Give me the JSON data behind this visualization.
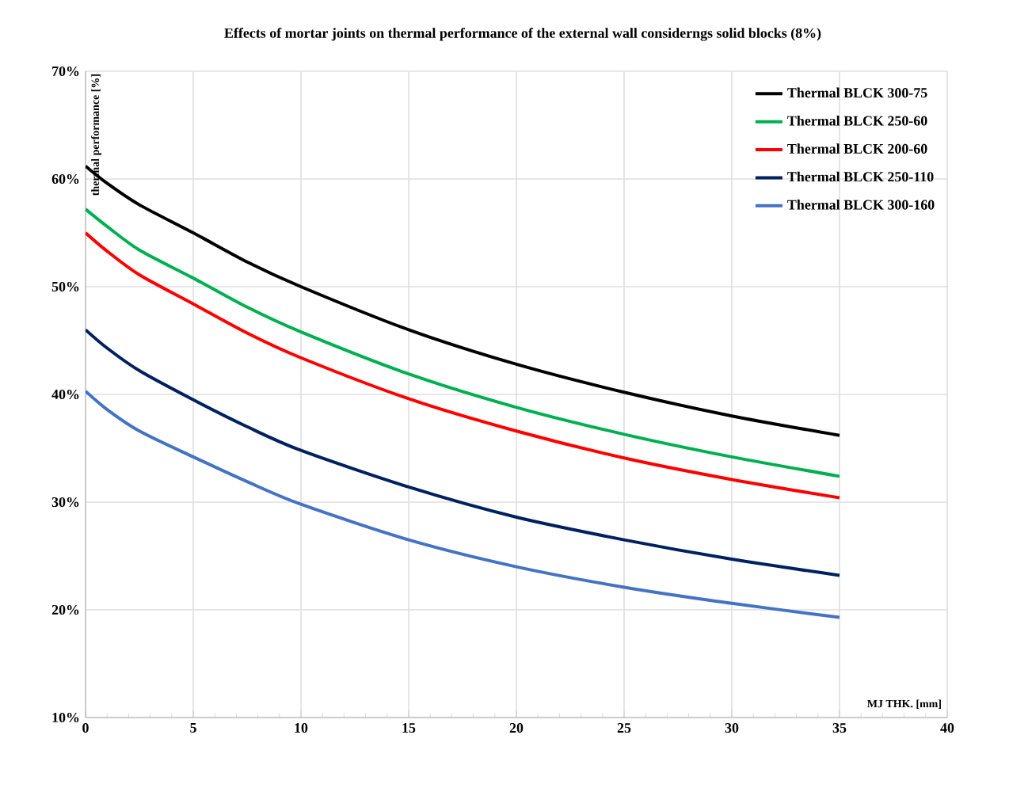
{
  "chart_data": {
    "type": "line",
    "title": "Effects of mortar joints on thermal performance of the external wall considerngs solid blocks (8%)",
    "xlabel": "MJ THK. [mm]",
    "ylabel": "thermal performance [%]",
    "x": [
      0,
      1,
      2.5,
      5,
      7.5,
      10,
      15,
      20,
      25,
      30,
      35
    ],
    "series": [
      {
        "name": "Thermal BLCK 300-75",
        "color": "#000000",
        "values": [
          61.2,
          59.6,
          57.6,
          55.0,
          52.3,
          50.0,
          46.0,
          42.8,
          40.2,
          38.0,
          36.2
        ]
      },
      {
        "name": "Thermal BLCK 250-60",
        "color": "#00b050",
        "values": [
          57.2,
          55.6,
          53.4,
          50.8,
          48.1,
          45.8,
          41.9,
          38.8,
          36.3,
          34.2,
          32.4
        ]
      },
      {
        "name": "Thermal BLCK 200-60",
        "color": "#ff0000",
        "values": [
          55.0,
          53.3,
          51.1,
          48.4,
          45.7,
          43.4,
          39.6,
          36.6,
          34.1,
          32.1,
          30.4
        ]
      },
      {
        "name": "Thermal BLCK 250-110",
        "color": "#002060",
        "values": [
          46.0,
          44.3,
          42.2,
          39.5,
          37.0,
          34.8,
          31.4,
          28.6,
          26.5,
          24.7,
          23.2
        ]
      },
      {
        "name": "Thermal BLCK 300-160",
        "color": "#4472c4",
        "values": [
          40.3,
          38.6,
          36.6,
          34.2,
          31.9,
          29.8,
          26.5,
          24.0,
          22.1,
          20.6,
          19.3
        ]
      }
    ],
    "xlim": [
      0,
      40
    ],
    "xticks": [
      0,
      5,
      10,
      15,
      20,
      25,
      30,
      35,
      40
    ],
    "ylim": [
      10,
      70
    ],
    "yticks": [
      {
        "value": 10,
        "label": "10%"
      },
      {
        "value": 20,
        "label": "20%"
      },
      {
        "value": 30,
        "label": "30%"
      },
      {
        "value": 40,
        "label": "40%"
      },
      {
        "value": 50,
        "label": "50%"
      },
      {
        "value": 60,
        "label": "60%"
      },
      {
        "value": 70,
        "label": "70%"
      }
    ],
    "grid": true,
    "legend": "top right",
    "marker": "none",
    "line_style": "solid"
  }
}
